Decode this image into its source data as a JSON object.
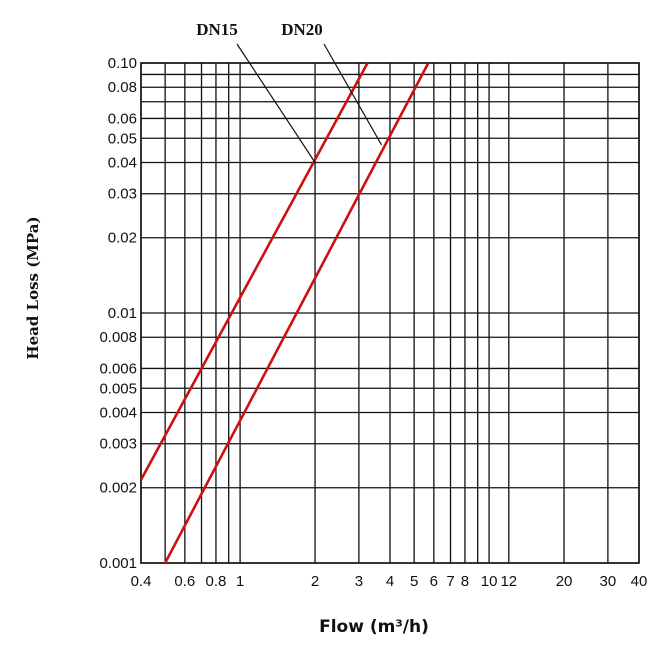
{
  "chart_data": {
    "type": "line",
    "title": "",
    "xlabel": "Flow (m³/h)",
    "ylabel": "Head Loss (MPa)",
    "x_scale": "log",
    "y_scale": "log",
    "xlim": [
      0.4,
      40
    ],
    "ylim": [
      0.001,
      0.1
    ],
    "grid": true,
    "x_ticks": [
      {
        "value": 0.4,
        "label": "0.4"
      },
      {
        "value": 0.6,
        "label": "0.6"
      },
      {
        "value": 0.8,
        "label": "0.8"
      },
      {
        "value": 1,
        "label": "1"
      },
      {
        "value": 2,
        "label": "2"
      },
      {
        "value": 3,
        "label": "3"
      },
      {
        "value": 4,
        "label": "4"
      },
      {
        "value": 5,
        "label": "5"
      },
      {
        "value": 6,
        "label": "6"
      },
      {
        "value": 7,
        "label": "7"
      },
      {
        "value": 8,
        "label": "8"
      },
      {
        "value": 10,
        "label": "10"
      },
      {
        "value": 12,
        "label": "12"
      },
      {
        "value": 20,
        "label": "20"
      },
      {
        "value": 30,
        "label": "30"
      },
      {
        "value": 40,
        "label": "40"
      }
    ],
    "x_gridlines": [
      0.4,
      0.5,
      0.6,
      0.7,
      0.8,
      0.9,
      1,
      2,
      3,
      4,
      5,
      6,
      7,
      8,
      9,
      10,
      12,
      20,
      30,
      40
    ],
    "y_ticks": [
      {
        "value": 0.001,
        "label": "0.001"
      },
      {
        "value": 0.002,
        "label": "0.002"
      },
      {
        "value": 0.003,
        "label": "0.003"
      },
      {
        "value": 0.004,
        "label": "0.004"
      },
      {
        "value": 0.005,
        "label": "0.005"
      },
      {
        "value": 0.006,
        "label": "0.006"
      },
      {
        "value": 0.008,
        "label": "0.008"
      },
      {
        "value": 0.01,
        "label": "0.01"
      },
      {
        "value": 0.02,
        "label": "0.02"
      },
      {
        "value": 0.03,
        "label": "0.03"
      },
      {
        "value": 0.04,
        "label": "0.04"
      },
      {
        "value": 0.05,
        "label": "0.05"
      },
      {
        "value": 0.06,
        "label": "0.06"
      },
      {
        "value": 0.08,
        "label": "0.08"
      },
      {
        "value": 0.1,
        "label": "0.10"
      }
    ],
    "y_gridlines": [
      0.001,
      0.002,
      0.003,
      0.004,
      0.005,
      0.006,
      0.008,
      0.01,
      0.02,
      0.03,
      0.04,
      0.05,
      0.06,
      0.07,
      0.08,
      0.09,
      0.1
    ],
    "series": [
      {
        "name": "DN15",
        "color": "#cc1111",
        "points": [
          [
            0.4,
            0.00215
          ],
          [
            3.25,
            0.1
          ]
        ]
      },
      {
        "name": "DN20",
        "color": "#cc1111",
        "points": [
          [
            0.5,
            0.001
          ],
          [
            5.7,
            0.1
          ]
        ]
      }
    ],
    "annotations": [
      {
        "series": "DN15",
        "label": "DN15",
        "points_at": [
          2.0,
          0.04
        ]
      },
      {
        "series": "DN20",
        "label": "DN20",
        "points_at": [
          3.7,
          0.047
        ]
      }
    ]
  }
}
